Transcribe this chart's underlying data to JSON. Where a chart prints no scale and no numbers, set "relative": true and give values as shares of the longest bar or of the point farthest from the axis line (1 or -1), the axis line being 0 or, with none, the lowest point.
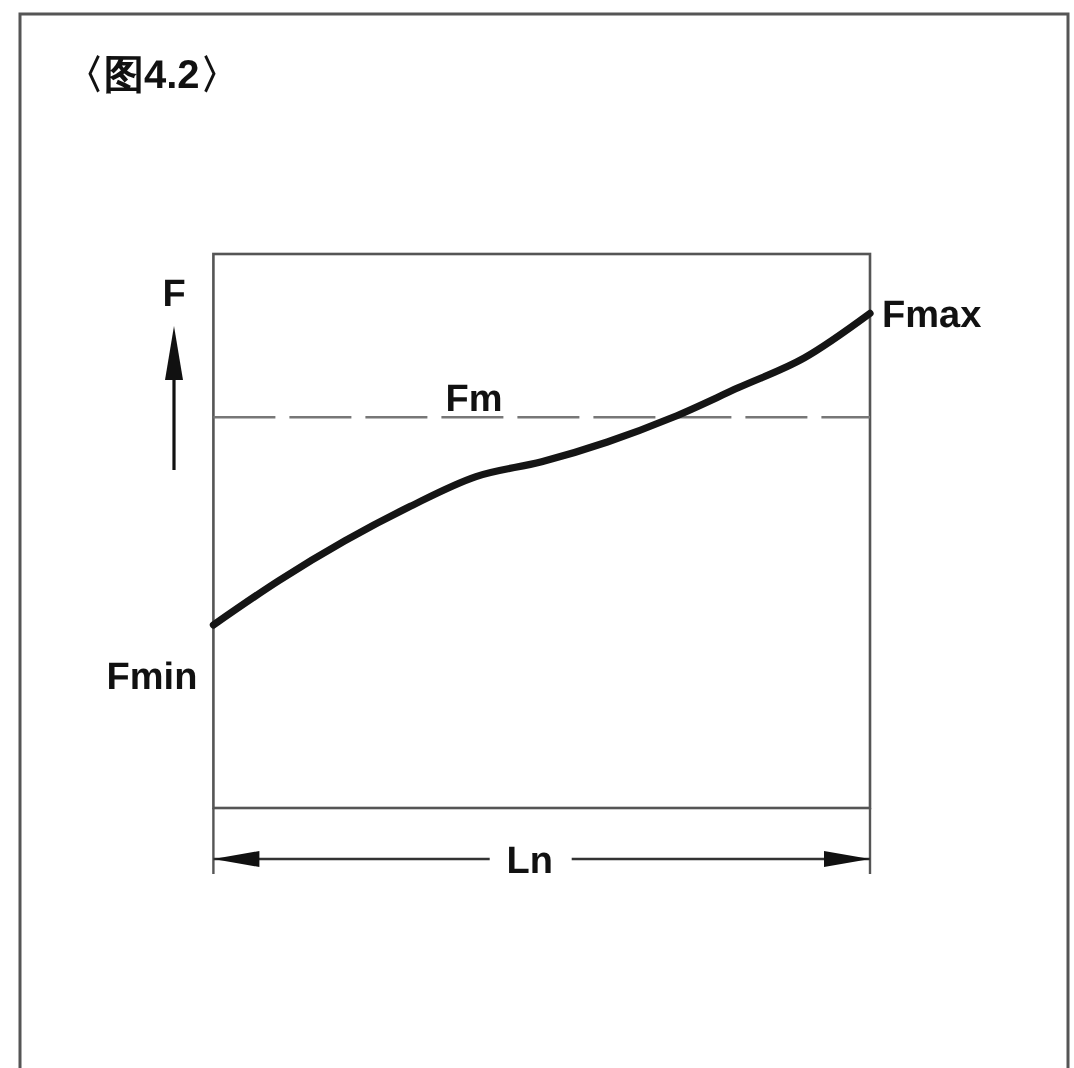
{
  "chart_data": {
    "type": "line",
    "title": "〈图4.2〉",
    "xlabel": "Ln",
    "ylabel": "F",
    "relative": true,
    "categories": [
      null,
      null,
      null,
      null,
      null,
      null,
      null,
      null,
      null,
      null,
      null
    ],
    "series": [
      {
        "color": "#151515",
        "values": [
          0.37,
          0.46,
          0.54,
          0.61,
          0.67,
          0.7,
          0.74,
          0.79,
          0.85,
          0.91,
          1
        ]
      }
    ],
    "ref_lines": [
      {
        "axis": "y",
        "value": 0.79,
        "label": "Fm",
        "color": "#777777",
        "line_style": "dashed"
      }
    ],
    "annotations": [
      "Fmin",
      "Fmax"
    ]
  }
}
